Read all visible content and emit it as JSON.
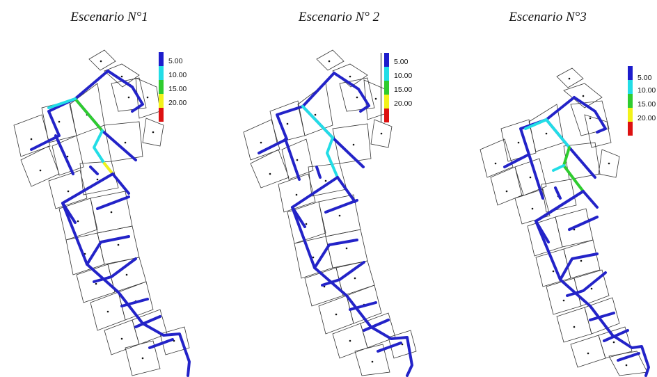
{
  "scenarios": [
    {
      "title": "Escenario N°1"
    },
    {
      "title": "Escenario N° 2"
    },
    {
      "title": "Escenario N°3"
    }
  ],
  "legend": {
    "labels": [
      "5.00",
      "10.00",
      "15.00",
      "20.00"
    ],
    "colors": [
      "#1c1ccc",
      "#22dde6",
      "#2fcc2f",
      "#f2f21a",
      "#dd1111"
    ]
  },
  "colors": {
    "pipe_main": "#2323c8",
    "block_outline": "#333333"
  }
}
